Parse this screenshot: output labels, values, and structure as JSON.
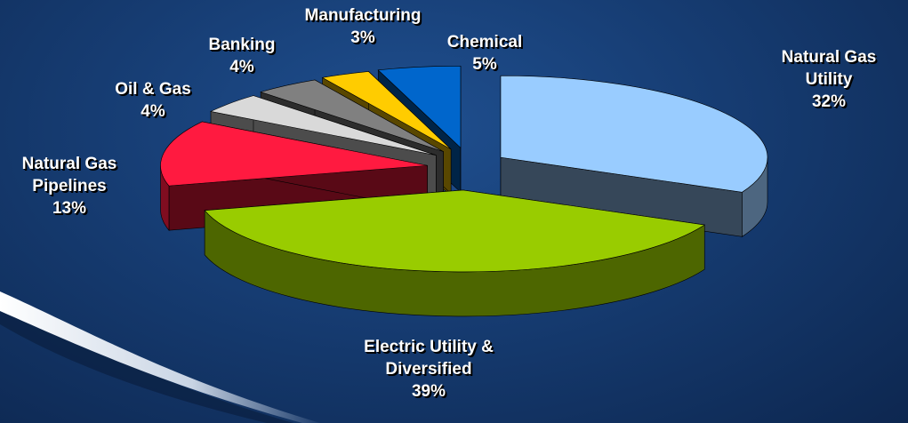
{
  "chart_data": {
    "type": "pie3d",
    "categories": [
      "Natural Gas Utility",
      "Electric Utility & Diversified",
      "Natural Gas Pipelines",
      "Oil & Gas",
      "Banking",
      "Manufacturing",
      "Chemical"
    ],
    "values": [
      32,
      39,
      13,
      4,
      4,
      3,
      5
    ],
    "value_labels": [
      "32%",
      "39%",
      "13%",
      "4%",
      "4%",
      "3%",
      "5%"
    ],
    "colors": [
      "#99ccff",
      "#99cc00",
      "#ff1a40",
      "#d9d9d9",
      "#808080",
      "#ffcc00",
      "#0066cc"
    ]
  }
}
